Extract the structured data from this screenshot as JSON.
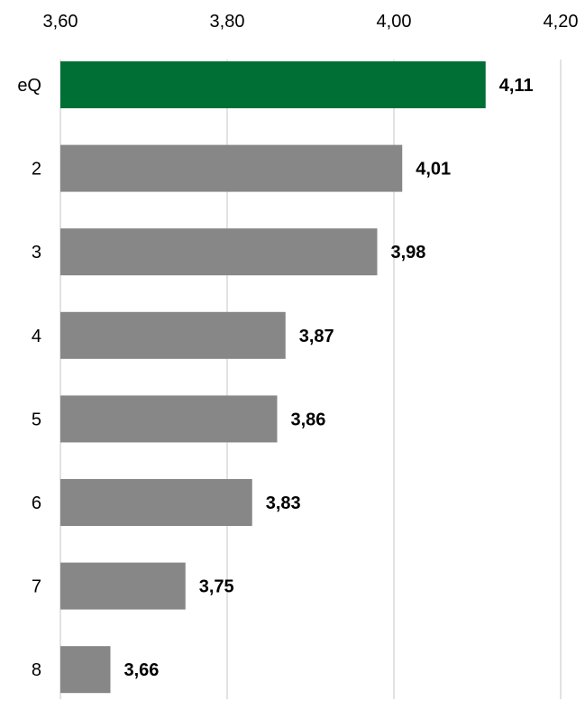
{
  "chart_data": {
    "type": "bar",
    "orientation": "horizontal",
    "categories": [
      "eQ",
      "2",
      "3",
      "4",
      "5",
      "6",
      "7",
      "8"
    ],
    "values": [
      4.11,
      4.01,
      3.98,
      3.87,
      3.86,
      3.83,
      3.75,
      3.66
    ],
    "data_labels": [
      "4,11",
      "4,01",
      "3,98",
      "3,87",
      "3,86",
      "3,83",
      "3,75",
      "3,66"
    ],
    "xlim": [
      3.6,
      4.2
    ],
    "x_ticks": [
      3.6,
      3.8,
      4.0,
      4.2
    ],
    "x_tick_labels": [
      "3,60",
      "3,80",
      "4,00",
      "4,20"
    ],
    "x_axis_position": "top",
    "grid": true,
    "title": "",
    "xlabel": "",
    "ylabel": "",
    "colors": {
      "highlight": "#006f35",
      "default": "#878787",
      "grid": "#d9d9d9"
    },
    "highlight_category": "eQ"
  }
}
